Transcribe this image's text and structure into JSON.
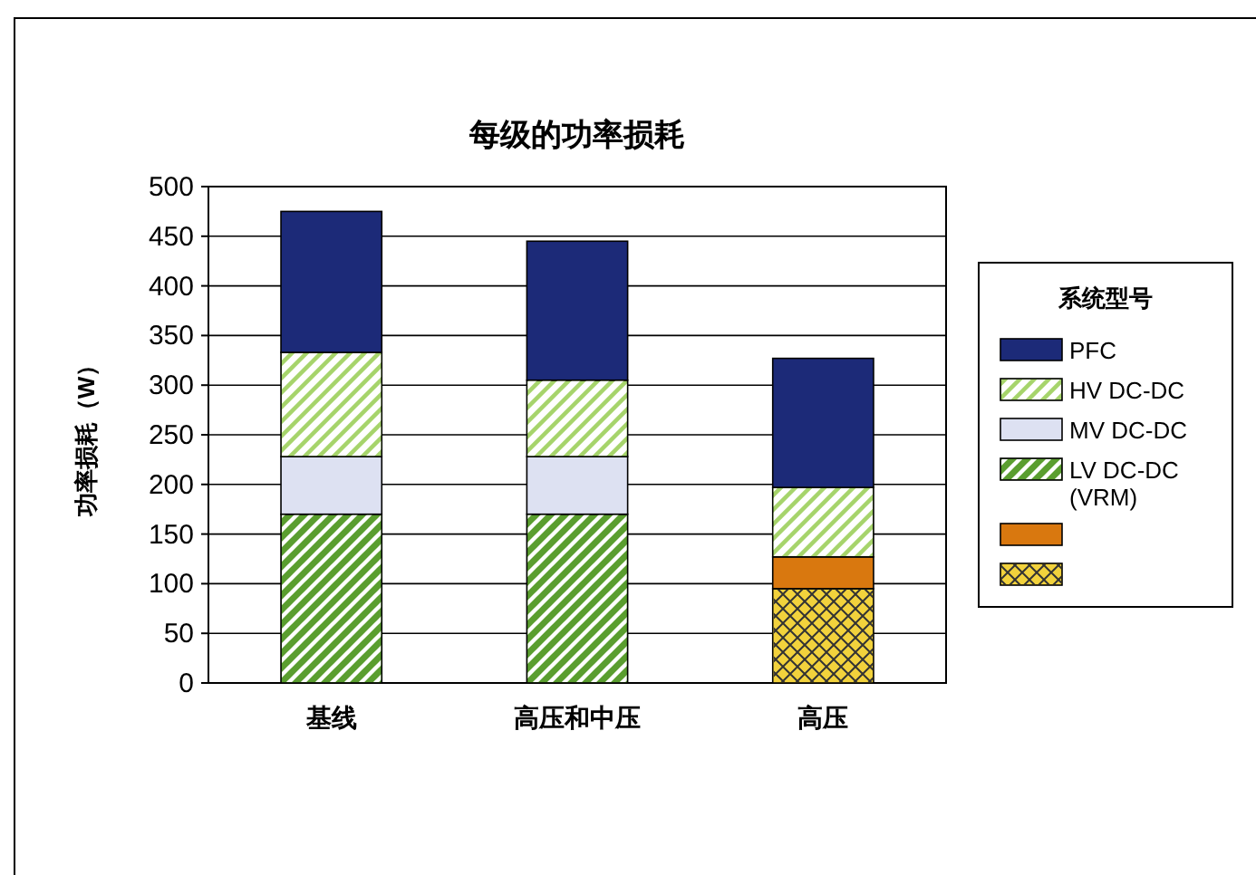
{
  "chart_data": {
    "type": "bar",
    "title": "每级的功率损耗",
    "ylabel": "功率损耗（W）",
    "legend_title": "系统型号",
    "categories": [
      "基线",
      "高压和中压",
      "高压"
    ],
    "stacked": true,
    "ylim": [
      0,
      500
    ],
    "yticks": [
      0,
      50,
      100,
      150,
      200,
      250,
      300,
      350,
      400,
      450,
      500
    ],
    "grid": "y",
    "legend": "right",
    "series": [
      {
        "color": "#f2d23c",
        "values": [
          null,
          null,
          95
        ]
      },
      {
        "color": "#d9780f",
        "values": [
          null,
          null,
          32
        ]
      },
      {
        "name": "LV DC-DC (VRM)",
        "color": "#5a9e2f",
        "values": [
          170,
          170,
          null
        ]
      },
      {
        "name": "MV DC-DC",
        "color": "#dde1f2",
        "values": [
          58,
          58,
          null
        ]
      },
      {
        "name": "HV DC-DC",
        "color": "#a6d46b",
        "values": [
          105,
          77,
          70
        ]
      },
      {
        "name": "PFC",
        "color": "#1c2a78",
        "values": [
          142,
          140,
          130
        ]
      }
    ]
  }
}
